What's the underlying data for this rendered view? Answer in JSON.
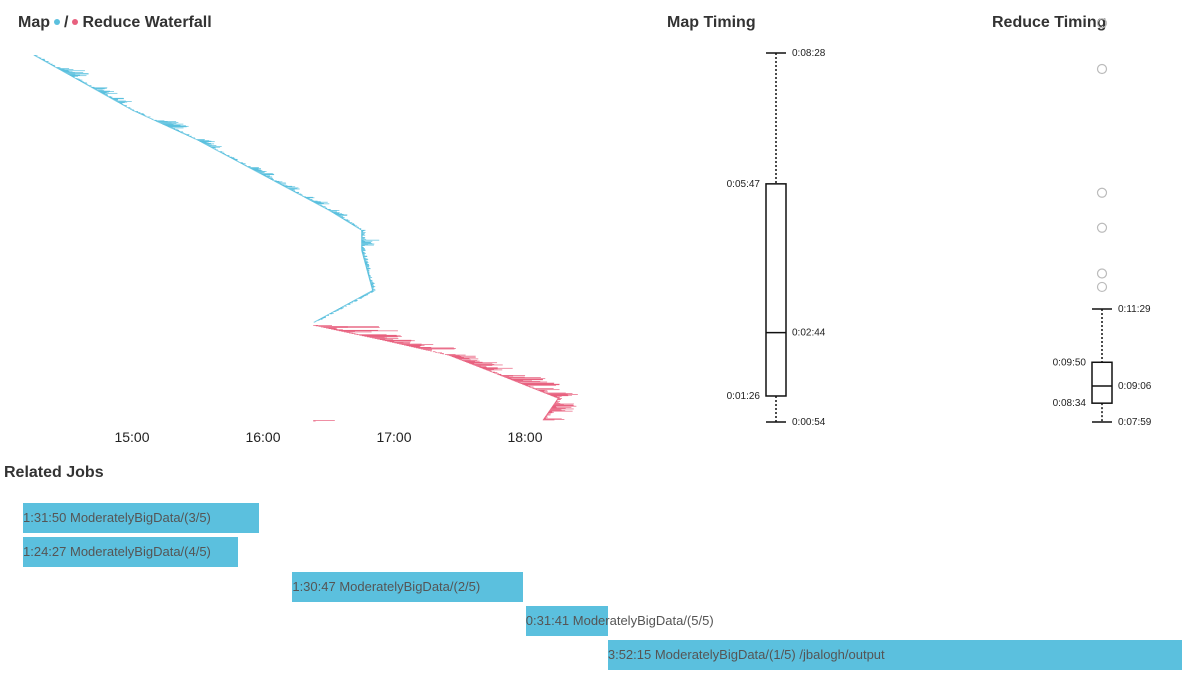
{
  "colors": {
    "map": "#5bc0de",
    "reduce": "#e8607e",
    "box": "#111111",
    "outlier": "#bbbbbb"
  },
  "waterfall": {
    "title_map": "Map",
    "title_sep": "/",
    "title_reduce": "Reduce Waterfall"
  },
  "map_timing": {
    "title": "Map Timing"
  },
  "reduce_timing": {
    "title": "Reduce Timing"
  },
  "related": {
    "title": "Related Jobs",
    "jobs": [
      {
        "duration": "1:31:50",
        "name": "ModeratelyBigData/(3/5)",
        "label": "1:31:50 ModeratelyBigData/(3/5)",
        "start": "14:15",
        "end": "15:47"
      },
      {
        "duration": "1:24:27",
        "name": "ModeratelyBigData/(4/5)",
        "label": "1:24:27 ModeratelyBigData/(4/5)",
        "start": "14:15",
        "end": "15:39"
      },
      {
        "duration": "1:30:47",
        "name": "ModeratelyBigData/(2/5)",
        "label": "1:30:47 ModeratelyBigData/(2/5)",
        "start": "16:00",
        "end": "17:30"
      },
      {
        "duration": "0:31:41",
        "name": "ModeratelyBigData/(5/5)",
        "label": "0:31:41 ModeratelyBigData/(5/5)",
        "start": "17:31",
        "end": "18:03"
      },
      {
        "duration": "3:52:15",
        "name": "ModeratelyBigData/(1/5) /jbalogh/output",
        "label": "3:52:15 ModeratelyBigData/(1/5) /jbalogh/output",
        "start": "18:03",
        "end": "21:55"
      }
    ]
  },
  "chart_data": [
    {
      "type": "bar",
      "subtype": "waterfall",
      "title": "Map / Reduce Waterfall",
      "x_ticks": [
        "15:00",
        "16:00",
        "17:00",
        "18:00"
      ],
      "xlim": [
        "14:13",
        "18:10"
      ],
      "series": [
        {
          "name": "Map",
          "start": "14:15",
          "end": "16:23",
          "approx_task_end_max": "16:23"
        },
        {
          "name": "Reduce",
          "start": "16:23",
          "end": "18:08"
        }
      ]
    },
    {
      "type": "box",
      "title": "Map Timing",
      "whisker_low": "0:00:54",
      "q1": "0:01:26",
      "median": "0:02:44",
      "q3": "0:05:47",
      "whisker_high": "0:08:28",
      "outliers": []
    },
    {
      "type": "box",
      "title": "Reduce Timing",
      "whisker_low": "0:07:59",
      "q1": "0:08:34",
      "median": "0:09:06",
      "q3": "0:09:50",
      "whisker_high": "0:11:29",
      "outliers": [
        "0:12:10",
        "0:12:35",
        "0:14:00",
        "0:15:05",
        "0:18:55",
        "0:20:20"
      ]
    }
  ]
}
